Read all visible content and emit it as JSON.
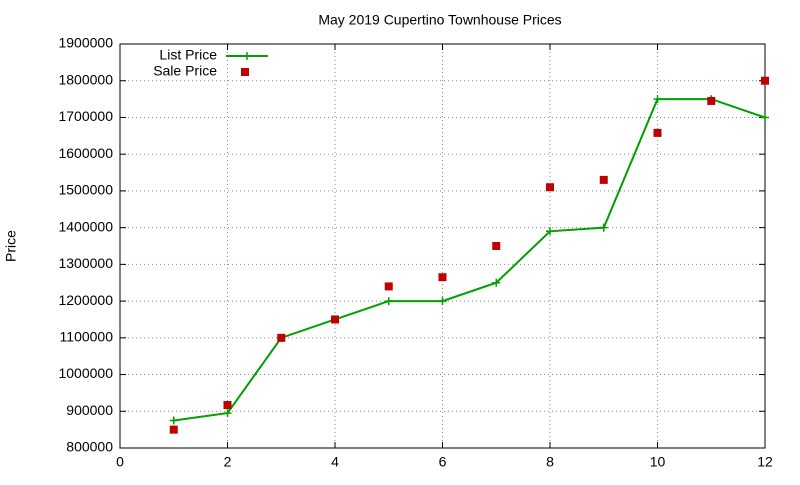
{
  "chart_data": {
    "type": "line",
    "title": "May 2019 Cupertino Townhouse Prices",
    "y_label": "Price",
    "x": [
      1,
      2,
      3,
      4,
      5,
      6,
      7,
      8,
      9,
      10,
      11,
      12
    ],
    "series": [
      {
        "name": "List Price",
        "color": "#00a000",
        "style": "linespoints",
        "values": [
          875000,
          895000,
          1100000,
          1150000,
          1200000,
          1200000,
          1250000,
          1390000,
          1400000,
          1750000,
          1750000,
          1700000
        ]
      },
      {
        "name": "Sale Price",
        "color": "#c00000",
        "style": "points",
        "values": [
          850000,
          917000,
          1100000,
          1150000,
          1240000,
          1265000,
          1350000,
          1510000,
          1530000,
          1658000,
          1745000,
          1800000
        ]
      }
    ],
    "xlim": [
      0,
      12
    ],
    "xticks": [
      0,
      2,
      4,
      6,
      8,
      10,
      12
    ],
    "ylim": [
      800000,
      1900000
    ],
    "yticks": [
      800000,
      900000,
      1000000,
      1100000,
      1200000,
      1300000,
      1400000,
      1500000,
      1600000,
      1700000,
      1800000,
      1900000
    ],
    "grid": true,
    "legend": "top-left"
  }
}
